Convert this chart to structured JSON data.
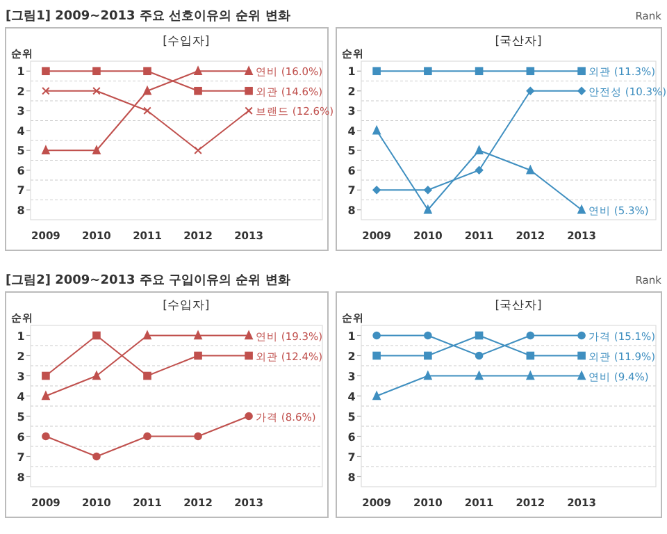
{
  "chart_data": [
    {
      "type": "line",
      "title": "[수입자]",
      "ylabel": "순위",
      "annotations": [
        "[그림1] 2009~2013 주요 선호이유의 순위 변화"
      ],
      "categories": [
        "2009",
        "2010",
        "2011",
        "2012",
        "2013"
      ],
      "ylim": [
        8.5,
        0.5
      ],
      "yticks": [
        1,
        {
          "value": 1.5,
          "label": null
        },
        2,
        {
          "value": 2.5,
          "label": null
        },
        3,
        {
          "value": 3.5,
          "label": null
        },
        4,
        {
          "value": 4.5,
          "label": null
        },
        5,
        {
          "value": 5.5,
          "label": null
        },
        6,
        {
          "value": 6.5,
          "label": null
        },
        7,
        {
          "value": 7.5,
          "label": null
        },
        8
      ],
      "grid": "y",
      "legend": "right",
      "series": [
        {
          "name": "연비 (16.0%)",
          "color": "#c0504d",
          "marker": "triangle",
          "values": [
            5,
            5,
            2,
            1,
            1
          ]
        },
        {
          "name": "외관 (14.6%)",
          "color": "#c0504d",
          "marker": "square",
          "values": [
            1,
            1,
            1,
            2,
            2
          ]
        },
        {
          "name": "브랜드 (12.6%)",
          "color": "#c0504d",
          "marker": "cross",
          "values": [
            2,
            2,
            3,
            5,
            3
          ]
        }
      ]
    },
    {
      "type": "line",
      "title": "[국산자]",
      "ylabel": "순위",
      "annotations": [
        "Rank"
      ],
      "categories": [
        "2009",
        "2010",
        "2011",
        "2012",
        "2013"
      ],
      "ylim": [
        8.5,
        0.5
      ],
      "yticks": [
        1,
        {
          "value": 1.5,
          "label": null
        },
        2,
        {
          "value": 2.5,
          "label": null
        },
        3,
        {
          "value": 3.5,
          "label": null
        },
        4,
        {
          "value": 4.5,
          "label": null
        },
        5,
        {
          "value": 5.5,
          "label": null
        },
        6,
        {
          "value": 6.5,
          "label": null
        },
        7,
        {
          "value": 7.5,
          "label": null
        },
        8
      ],
      "grid": "y",
      "legend": "right",
      "series": [
        {
          "name": "외관 (11.3%)",
          "color": "#3f8fc0",
          "marker": "square",
          "values": [
            1,
            1,
            1,
            1,
            1
          ]
        },
        {
          "name": "안전성 (10.3%)",
          "color": "#3f8fc0",
          "marker": "diamond",
          "values": [
            7,
            7,
            6,
            2,
            2
          ]
        },
        {
          "name": "연비 (5.3%)",
          "color": "#3f8fc0",
          "marker": "triangle",
          "values": [
            4,
            8,
            5,
            6,
            8
          ]
        }
      ]
    },
    {
      "type": "line",
      "title": "[수입자]",
      "ylabel": "순위",
      "annotations": [
        "[그림2] 2009~2013 주요 구입이유의 순위 변화"
      ],
      "categories": [
        "2009",
        "2010",
        "2011",
        "2012",
        "2013"
      ],
      "ylim": [
        8.5,
        0.5
      ],
      "yticks": [
        1,
        {
          "value": 1.5,
          "label": null
        },
        2,
        {
          "value": 2.5,
          "label": null
        },
        3,
        {
          "value": 3.5,
          "label": null
        },
        4,
        {
          "value": 4.5,
          "label": null
        },
        5,
        {
          "value": 5.5,
          "label": null
        },
        6,
        {
          "value": 6.5,
          "label": null
        },
        7,
        {
          "value": 7.5,
          "label": null
        },
        8
      ],
      "grid": "y",
      "legend": "right",
      "series": [
        {
          "name": "연비 (19.3%)",
          "color": "#c0504d",
          "marker": "triangle",
          "values": [
            4,
            3,
            1,
            1,
            1
          ]
        },
        {
          "name": "외관 (12.4%)",
          "color": "#c0504d",
          "marker": "square",
          "values": [
            3,
            1,
            3,
            2,
            2
          ]
        },
        {
          "name": "가격 (8.6%)",
          "color": "#c0504d",
          "marker": "circle",
          "values": [
            6,
            7,
            6,
            6,
            5
          ]
        }
      ]
    },
    {
      "type": "line",
      "title": "[국산자]",
      "ylabel": "순위",
      "annotations": [
        "Rank"
      ],
      "categories": [
        "2009",
        "2010",
        "2011",
        "2012",
        "2013"
      ],
      "ylim": [
        8.5,
        0.5
      ],
      "yticks": [
        1,
        {
          "value": 1.5,
          "label": null
        },
        2,
        {
          "value": 2.5,
          "label": null
        },
        3,
        {
          "value": 3.5,
          "label": null
        },
        4,
        {
          "value": 4.5,
          "label": null
        },
        5,
        {
          "value": 5.5,
          "label": null
        },
        6,
        {
          "value": 6.5,
          "label": null
        },
        7,
        {
          "value": 7.5,
          "label": null
        },
        8
      ],
      "grid": "y",
      "legend": "right",
      "series": [
        {
          "name": "가격 (15.1%)",
          "color": "#3f8fc0",
          "marker": "circle",
          "values": [
            1,
            1,
            2,
            1,
            1
          ]
        },
        {
          "name": "외관 (11.9%)",
          "color": "#3f8fc0",
          "marker": "square",
          "values": [
            2,
            2,
            1,
            2,
            2
          ]
        },
        {
          "name": "연비 (9.4%)",
          "color": "#3f8fc0",
          "marker": "triangle",
          "values": [
            4,
            3,
            3,
            3,
            3
          ]
        }
      ]
    }
  ]
}
